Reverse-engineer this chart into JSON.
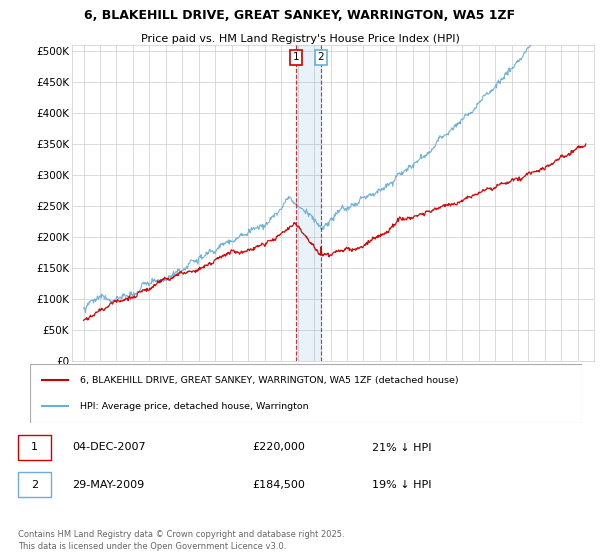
{
  "title": "6, BLAKEHILL DRIVE, GREAT SANKEY, WARRINGTON, WA5 1ZF",
  "subtitle": "Price paid vs. HM Land Registry's House Price Index (HPI)",
  "ylabel_ticks": [
    "£0",
    "£50K",
    "£100K",
    "£150K",
    "£200K",
    "£250K",
    "£300K",
    "£350K",
    "£400K",
    "£450K",
    "£500K"
  ],
  "ytick_values": [
    0,
    50000,
    100000,
    150000,
    200000,
    250000,
    300000,
    350000,
    400000,
    450000,
    500000
  ],
  "ylim": [
    0,
    510000
  ],
  "sale1_date": "04-DEC-2007",
  "sale1_price": 220000,
  "sale1_price_str": "£220,000",
  "sale1_pct": "21% ↓ HPI",
  "sale2_date": "29-MAY-2009",
  "sale2_price": 184500,
  "sale2_price_str": "£184,500",
  "sale2_pct": "19% ↓ HPI",
  "legend_line1": "6, BLAKEHILL DRIVE, GREAT SANKEY, WARRINGTON, WA5 1ZF (detached house)",
  "legend_line2": "HPI: Average price, detached house, Warrington",
  "footnote": "Contains HM Land Registry data © Crown copyright and database right 2025.\nThis data is licensed under the Open Government Licence v3.0.",
  "hpi_color": "#6baed6",
  "price_color": "#cc0000",
  "marker1_x": 2007.92,
  "marker2_x": 2009.42,
  "background_color": "#ffffff",
  "grid_color": "#cccccc",
  "marker1_color": "#cc0000",
  "marker2_color": "#6baed6"
}
